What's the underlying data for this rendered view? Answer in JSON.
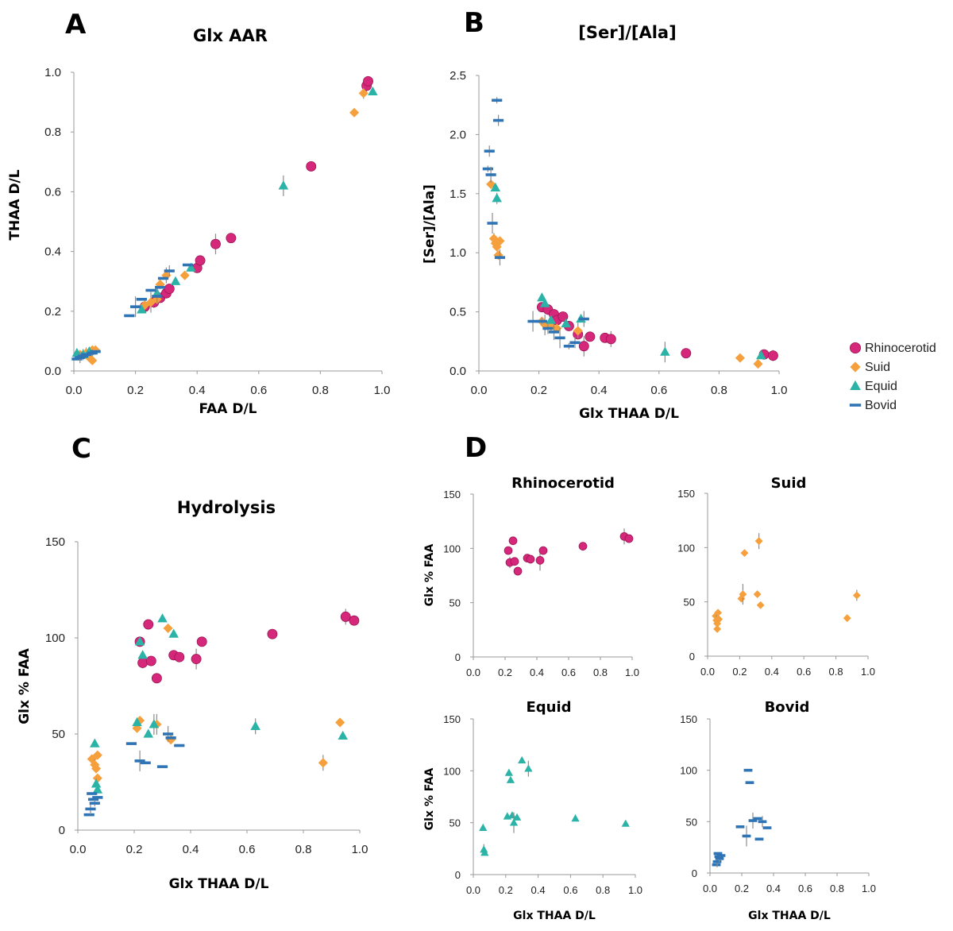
{
  "colors": {
    "Rhinocerotid": "#d6287a",
    "Suid": "#f5a03c",
    "Equid": "#2bb3a8",
    "Bovid": "#2f74b5"
  },
  "legend": {
    "items": [
      {
        "name": "Rhinocerotid",
        "marker": "circle"
      },
      {
        "name": "Suid",
        "marker": "diamond"
      },
      {
        "name": "Equid",
        "marker": "triangle"
      },
      {
        "name": "Bovid",
        "marker": "dash"
      }
    ]
  },
  "chart_data": [
    {
      "id": "A",
      "panel_letter": "A",
      "type": "scatter",
      "title": "Glx AAR",
      "xlabel": "FAA D/L",
      "ylabel": "THAA D/L",
      "xlim": [
        0,
        1
      ],
      "ylim": [
        0,
        1
      ],
      "xticks": [
        "0.0",
        "0.2",
        "0.4",
        "0.6",
        "0.8",
        "1.0"
      ],
      "yticks": [
        "0.0",
        "0.2",
        "0.4",
        "0.6",
        "0.8",
        "1.0"
      ],
      "series": [
        {
          "name": "Rhinocerotid",
          "points": [
            [
              0.23,
              0.215
            ],
            [
              0.26,
              0.23
            ],
            [
              0.28,
              0.245
            ],
            [
              0.3,
              0.26
            ],
            [
              0.31,
              0.275
            ],
            [
              0.4,
              0.345
            ],
            [
              0.41,
              0.37
            ],
            [
              0.46,
              0.425
            ],
            [
              0.51,
              0.445
            ],
            [
              0.77,
              0.685
            ],
            [
              0.95,
              0.955
            ],
            [
              0.955,
              0.97
            ]
          ]
        },
        {
          "name": "Suid",
          "points": [
            [
              0.02,
              0.055
            ],
            [
              0.04,
              0.06
            ],
            [
              0.05,
              0.045
            ],
            [
              0.06,
              0.035
            ],
            [
              0.06,
              0.07
            ],
            [
              0.07,
              0.07
            ],
            [
              0.23,
              0.22
            ],
            [
              0.25,
              0.23
            ],
            [
              0.27,
              0.24
            ],
            [
              0.28,
              0.29
            ],
            [
              0.3,
              0.32
            ],
            [
              0.36,
              0.32
            ],
            [
              0.91,
              0.865
            ],
            [
              0.94,
              0.93
            ]
          ]
        },
        {
          "name": "Equid",
          "points": [
            [
              0.01,
              0.06
            ],
            [
              0.03,
              0.055
            ],
            [
              0.05,
              0.065
            ],
            [
              0.22,
              0.205
            ],
            [
              0.27,
              0.26
            ],
            [
              0.33,
              0.3
            ],
            [
              0.38,
              0.345
            ],
            [
              0.68,
              0.62
            ],
            [
              0.97,
              0.935
            ]
          ]
        },
        {
          "name": "Bovid",
          "points": [
            [
              0.01,
              0.04
            ],
            [
              0.02,
              0.045
            ],
            [
              0.03,
              0.05
            ],
            [
              0.04,
              0.055
            ],
            [
              0.06,
              0.06
            ],
            [
              0.07,
              0.065
            ],
            [
              0.18,
              0.185
            ],
            [
              0.2,
              0.215
            ],
            [
              0.22,
              0.24
            ],
            [
              0.25,
              0.27
            ],
            [
              0.27,
              0.25
            ],
            [
              0.28,
              0.28
            ],
            [
              0.29,
              0.31
            ],
            [
              0.31,
              0.335
            ],
            [
              0.37,
              0.355
            ]
          ]
        }
      ]
    },
    {
      "id": "B",
      "panel_letter": "B",
      "type": "scatter",
      "title": "[Ser]/[Ala]",
      "xlabel": "Glx THAA D/L",
      "ylabel": "[Ser]/[Ala]",
      "xlim": [
        0,
        1
      ],
      "ylim": [
        0,
        2.5
      ],
      "xticks": [
        "0.0",
        "0.2",
        "0.4",
        "0.6",
        "0.8",
        "1.0"
      ],
      "yticks": [
        "0.0",
        "0.5",
        "1.0",
        "1.5",
        "2.0",
        "2.5"
      ],
      "series": [
        {
          "name": "Rhinocerotid",
          "points": [
            [
              0.21,
              0.54
            ],
            [
              0.23,
              0.52
            ],
            [
              0.25,
              0.48
            ],
            [
              0.26,
              0.43
            ],
            [
              0.28,
              0.46
            ],
            [
              0.3,
              0.38
            ],
            [
              0.33,
              0.31
            ],
            [
              0.35,
              0.21
            ],
            [
              0.37,
              0.29
            ],
            [
              0.42,
              0.28
            ],
            [
              0.44,
              0.27
            ],
            [
              0.69,
              0.15
            ],
            [
              0.95,
              0.14
            ],
            [
              0.98,
              0.13
            ]
          ]
        },
        {
          "name": "Suid",
          "points": [
            [
              0.04,
              1.58
            ],
            [
              0.05,
              1.12
            ],
            [
              0.055,
              1.08
            ],
            [
              0.06,
              1.05
            ],
            [
              0.065,
              0.98
            ],
            [
              0.07,
              1.1
            ],
            [
              0.21,
              0.42
            ],
            [
              0.22,
              0.39
            ],
            [
              0.24,
              0.38
            ],
            [
              0.26,
              0.36
            ],
            [
              0.33,
              0.34
            ],
            [
              0.87,
              0.11
            ],
            [
              0.93,
              0.06
            ]
          ]
        },
        {
          "name": "Equid",
          "points": [
            [
              0.055,
              1.55
            ],
            [
              0.06,
              1.46
            ],
            [
              0.21,
              0.62
            ],
            [
              0.22,
              0.57
            ],
            [
              0.24,
              0.43
            ],
            [
              0.29,
              0.4
            ],
            [
              0.34,
              0.44
            ],
            [
              0.62,
              0.16
            ],
            [
              0.94,
              0.13
            ]
          ]
        },
        {
          "name": "Bovid",
          "errors": true,
          "points": [
            [
              0.03,
              1.71
            ],
            [
              0.035,
              1.86
            ],
            [
              0.04,
              1.66
            ],
            [
              0.045,
              1.25
            ],
            [
              0.06,
              2.29
            ],
            [
              0.065,
              2.12
            ],
            [
              0.07,
              0.96
            ],
            [
              0.18,
              0.42
            ],
            [
              0.21,
              0.42
            ],
            [
              0.23,
              0.36
            ],
            [
              0.25,
              0.33
            ],
            [
              0.27,
              0.28
            ],
            [
              0.3,
              0.21
            ],
            [
              0.32,
              0.24
            ],
            [
              0.35,
              0.44
            ]
          ]
        }
      ]
    },
    {
      "id": "C",
      "panel_letter": "C",
      "type": "scatter",
      "title": "Hydrolysis",
      "xlabel": "Glx THAA D/L",
      "ylabel": "Glx % FAA",
      "xlim": [
        0,
        1
      ],
      "ylim": [
        0,
        150
      ],
      "xticks": [
        "0.0",
        "0.2",
        "0.4",
        "0.6",
        "0.8",
        "1.0"
      ],
      "yticks": [
        "0",
        "50",
        "100",
        "150"
      ],
      "series": [
        {
          "name": "Rhinocerotid",
          "points": [
            [
              0.22,
              98
            ],
            [
              0.23,
              87
            ],
            [
              0.25,
              107
            ],
            [
              0.26,
              88
            ],
            [
              0.28,
              79
            ],
            [
              0.34,
              91
            ],
            [
              0.36,
              90
            ],
            [
              0.42,
              89
            ],
            [
              0.44,
              98
            ],
            [
              0.69,
              102
            ],
            [
              0.95,
              111
            ],
            [
              0.98,
              109
            ]
          ]
        },
        {
          "name": "Suid",
          "points": [
            [
              0.05,
              37
            ],
            [
              0.06,
              34
            ],
            [
              0.065,
              32
            ],
            [
              0.07,
              39
            ],
            [
              0.07,
              27
            ],
            [
              0.21,
              53
            ],
            [
              0.22,
              57
            ],
            [
              0.28,
              55
            ],
            [
              0.32,
              105
            ],
            [
              0.33,
              47
            ],
            [
              0.87,
              35
            ],
            [
              0.93,
              56
            ]
          ]
        },
        {
          "name": "Equid",
          "points": [
            [
              0.06,
              45
            ],
            [
              0.065,
              24
            ],
            [
              0.07,
              21
            ],
            [
              0.21,
              56
            ],
            [
              0.22,
              98
            ],
            [
              0.23,
              91
            ],
            [
              0.25,
              50
            ],
            [
              0.27,
              55
            ],
            [
              0.3,
              110
            ],
            [
              0.34,
              102
            ],
            [
              0.63,
              54
            ],
            [
              0.94,
              49
            ]
          ]
        },
        {
          "name": "Bovid",
          "points": [
            [
              0.04,
              8
            ],
            [
              0.045,
              11
            ],
            [
              0.05,
              19
            ],
            [
              0.055,
              16
            ],
            [
              0.06,
              14
            ],
            [
              0.07,
              17
            ],
            [
              0.19,
              45
            ],
            [
              0.22,
              36
            ],
            [
              0.24,
              35
            ],
            [
              0.3,
              33
            ],
            [
              0.32,
              50
            ],
            [
              0.33,
              48
            ],
            [
              0.36,
              44
            ]
          ]
        }
      ]
    },
    {
      "id": "D1",
      "panel_letter": "D",
      "type": "scatter",
      "title": "Rhinocerotid",
      "xlabel": "",
      "ylabel": "Glx % FAA",
      "xlim": [
        0,
        1
      ],
      "ylim": [
        0,
        150
      ],
      "xticks": [
        "0.0",
        "0.2",
        "0.4",
        "0.6",
        "0.8",
        "1.0"
      ],
      "yticks": [
        "0",
        "50",
        "100",
        "150"
      ],
      "series": [
        {
          "name": "Rhinocerotid",
          "points": [
            [
              0.22,
              98
            ],
            [
              0.23,
              87
            ],
            [
              0.25,
              107
            ],
            [
              0.26,
              88
            ],
            [
              0.28,
              79
            ],
            [
              0.34,
              91
            ],
            [
              0.36,
              90
            ],
            [
              0.42,
              89
            ],
            [
              0.44,
              98
            ],
            [
              0.69,
              102
            ],
            [
              0.95,
              111
            ],
            [
              0.98,
              109
            ]
          ]
        }
      ]
    },
    {
      "id": "D2",
      "type": "scatter",
      "title": "Suid",
      "xlabel": "",
      "ylabel": "",
      "xlim": [
        0,
        1
      ],
      "ylim": [
        0,
        150
      ],
      "xticks": [
        "0.0",
        "0.2",
        "0.4",
        "0.6",
        "0.8",
        "1.0"
      ],
      "yticks": [
        "0",
        "50",
        "100",
        "150"
      ],
      "series": [
        {
          "name": "Suid",
          "points": [
            [
              0.05,
              37
            ],
            [
              0.055,
              33
            ],
            [
              0.06,
              30
            ],
            [
              0.06,
              25
            ],
            [
              0.065,
              40
            ],
            [
              0.07,
              34
            ],
            [
              0.21,
              53
            ],
            [
              0.22,
              57
            ],
            [
              0.23,
              95
            ],
            [
              0.31,
              57
            ],
            [
              0.32,
              106
            ],
            [
              0.33,
              47
            ],
            [
              0.87,
              35
            ],
            [
              0.93,
              56
            ]
          ]
        }
      ]
    },
    {
      "id": "D3",
      "type": "scatter",
      "title": "Equid",
      "xlabel": "Glx THAA D/L",
      "ylabel": "Glx % FAA",
      "xlim": [
        0,
        1
      ],
      "ylim": [
        0,
        150
      ],
      "xticks": [
        "0.0",
        "0.2",
        "0.4",
        "0.6",
        "0.8",
        "1.0"
      ],
      "yticks": [
        "0",
        "50",
        "100",
        "150"
      ],
      "series": [
        {
          "name": "Equid",
          "points": [
            [
              0.06,
              45
            ],
            [
              0.065,
              24
            ],
            [
              0.07,
              21
            ],
            [
              0.21,
              56
            ],
            [
              0.22,
              98
            ],
            [
              0.23,
              91
            ],
            [
              0.24,
              57
            ],
            [
              0.25,
              50
            ],
            [
              0.27,
              55
            ],
            [
              0.3,
              110
            ],
            [
              0.34,
              102
            ],
            [
              0.63,
              54
            ],
            [
              0.94,
              49
            ]
          ]
        }
      ]
    },
    {
      "id": "D4",
      "type": "scatter",
      "title": "Bovid",
      "xlabel": "Glx THAA D/L",
      "ylabel": "",
      "xlim": [
        0,
        1
      ],
      "ylim": [
        0,
        150
      ],
      "xticks": [
        "0.0",
        "0.2",
        "0.4",
        "0.6",
        "0.8",
        "1.0"
      ],
      "yticks": [
        "0",
        "50",
        "100",
        "150"
      ],
      "series": [
        {
          "name": "Bovid",
          "points": [
            [
              0.04,
              8
            ],
            [
              0.045,
              11
            ],
            [
              0.05,
              19
            ],
            [
              0.055,
              16
            ],
            [
              0.06,
              14
            ],
            [
              0.07,
              17
            ],
            [
              0.19,
              45
            ],
            [
              0.23,
              36
            ],
            [
              0.24,
              100
            ],
            [
              0.25,
              88
            ],
            [
              0.27,
              51
            ],
            [
              0.3,
              53
            ],
            [
              0.31,
              33
            ],
            [
              0.33,
              50
            ],
            [
              0.36,
              44
            ]
          ]
        }
      ]
    }
  ]
}
